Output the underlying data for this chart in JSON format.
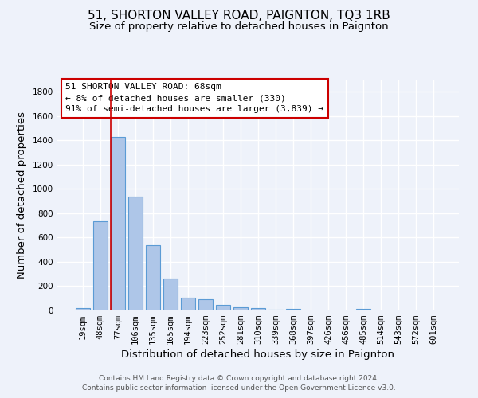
{
  "title": "51, SHORTON VALLEY ROAD, PAIGNTON, TQ3 1RB",
  "subtitle": "Size of property relative to detached houses in Paignton",
  "xlabel": "Distribution of detached houses by size in Paignton",
  "ylabel": "Number of detached properties",
  "footnote1": "Contains HM Land Registry data © Crown copyright and database right 2024.",
  "footnote2": "Contains public sector information licensed under the Open Government Licence v3.0.",
  "bar_labels": [
    "19sqm",
    "48sqm",
    "77sqm",
    "106sqm",
    "135sqm",
    "165sqm",
    "194sqm",
    "223sqm",
    "252sqm",
    "281sqm",
    "310sqm",
    "339sqm",
    "368sqm",
    "397sqm",
    "426sqm",
    "456sqm",
    "485sqm",
    "514sqm",
    "543sqm",
    "572sqm",
    "601sqm"
  ],
  "bar_values": [
    20,
    735,
    1430,
    935,
    535,
    265,
    105,
    90,
    47,
    27,
    20,
    8,
    13,
    2,
    2,
    2,
    13,
    0,
    0,
    0,
    0
  ],
  "bar_color": "#aec6e8",
  "bar_edge_color": "#5b9bd5",
  "highlight_index": 2,
  "highlight_line_color": "#cc0000",
  "annotation_line1": "51 SHORTON VALLEY ROAD: 68sqm",
  "annotation_line2": "← 8% of detached houses are smaller (330)",
  "annotation_line3": "91% of semi-detached houses are larger (3,839) →",
  "annotation_box_color": "#ffffff",
  "annotation_box_edge_color": "#cc0000",
  "ylim": [
    0,
    1900
  ],
  "yticks": [
    0,
    200,
    400,
    600,
    800,
    1000,
    1200,
    1400,
    1600,
    1800
  ],
  "bg_color": "#eef2fa",
  "plot_bg_color": "#eef2fa",
  "grid_color": "#ffffff",
  "title_fontsize": 11,
  "subtitle_fontsize": 9.5,
  "axis_label_fontsize": 9.5,
  "tick_fontsize": 7.5,
  "annotation_fontsize": 8,
  "footnote_fontsize": 6.5
}
